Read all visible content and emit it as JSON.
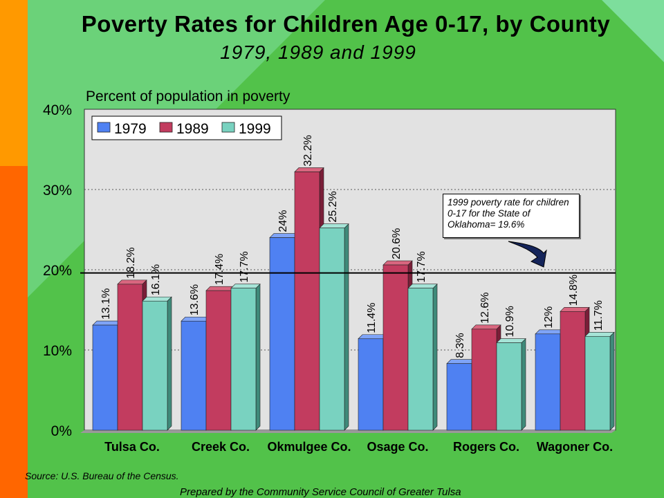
{
  "slide": {
    "title": "Poverty Rates for Children Age 0-17, by County",
    "subtitle": "1979, 1989 and 1999",
    "source": "Source:  U.S. Bureau of the Census.",
    "prepared_by": "Prepared by the Community Service Council of Greater Tulsa",
    "annotation": "1999 poverty rate for children 0-17 for the State of Oklahoma= 19.6%"
  },
  "chart_data": {
    "type": "bar",
    "title": "",
    "ylabel": "Percent of population in poverty",
    "xlabel": "",
    "ylim": [
      0,
      40
    ],
    "yticks": [
      "0%",
      "10%",
      "20%",
      "30%",
      "40%"
    ],
    "categories": [
      "Tulsa Co.",
      "Creek Co.",
      "Okmulgee Co.",
      "Osage Co.",
      "Rogers Co.",
      "Wagoner Co."
    ],
    "series": [
      {
        "name": "1979",
        "values": [
          13.1,
          13.6,
          24,
          11.4,
          8.3,
          12
        ],
        "labels": [
          "13.1%",
          "13.6%",
          "24%",
          "11.4%",
          "8.3%",
          "12%"
        ],
        "color": "#4f81f2",
        "shade": "#2a4fa0",
        "top": "#7fa4f7"
      },
      {
        "name": "1989",
        "values": [
          18.2,
          17.4,
          32.2,
          20.6,
          12.6,
          14.8
        ],
        "labels": [
          "18.2%",
          "17.4%",
          "32.2%",
          "20.6%",
          "12.6%",
          "14.8%"
        ],
        "color": "#c23c5f",
        "shade": "#7a1e38",
        "top": "#d9667f"
      },
      {
        "name": "1999",
        "values": [
          16.1,
          17.7,
          25.2,
          17.7,
          10.9,
          11.7
        ],
        "labels": [
          "16.1%",
          "17.7%",
          "25.2%",
          "17.7%",
          "10.9%",
          "11.7%"
        ],
        "color": "#79d2c0",
        "shade": "#3f8a7a",
        "top": "#a6e4d7"
      }
    ],
    "reference_line": {
      "value": 19.6
    },
    "legend_position": "top-left",
    "grid": true
  }
}
